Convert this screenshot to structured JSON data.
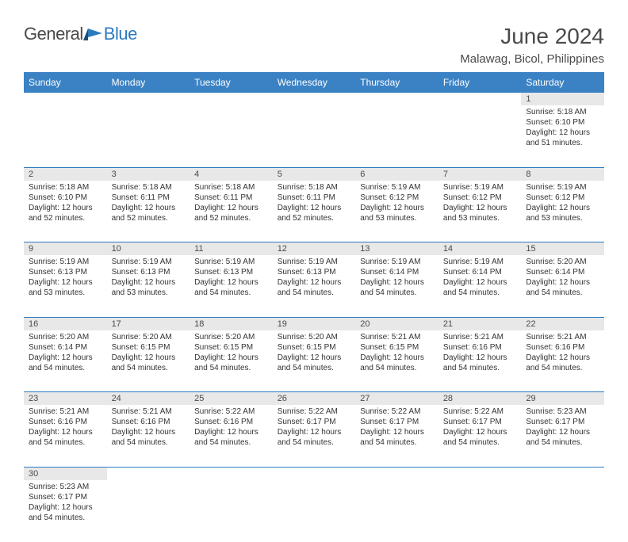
{
  "logo": {
    "text1": "General",
    "text2": "Blue"
  },
  "title": "June 2024",
  "location": "Malawag, Bicol, Philippines",
  "colors": {
    "header_bg": "#3b82c4",
    "header_text": "#ffffff",
    "daynum_bg": "#e8e8e8",
    "border": "#2b7bbf",
    "body_text": "#333333",
    "title_text": "#4a4a4a",
    "logo_blue": "#2b7bbf"
  },
  "weekdays": [
    "Sunday",
    "Monday",
    "Tuesday",
    "Wednesday",
    "Thursday",
    "Friday",
    "Saturday"
  ],
  "weeks": [
    [
      null,
      null,
      null,
      null,
      null,
      null,
      {
        "n": "1",
        "sr": "5:18 AM",
        "ss": "6:10 PM",
        "dl": "12 hours and 51 minutes."
      }
    ],
    [
      {
        "n": "2",
        "sr": "5:18 AM",
        "ss": "6:10 PM",
        "dl": "12 hours and 52 minutes."
      },
      {
        "n": "3",
        "sr": "5:18 AM",
        "ss": "6:11 PM",
        "dl": "12 hours and 52 minutes."
      },
      {
        "n": "4",
        "sr": "5:18 AM",
        "ss": "6:11 PM",
        "dl": "12 hours and 52 minutes."
      },
      {
        "n": "5",
        "sr": "5:18 AM",
        "ss": "6:11 PM",
        "dl": "12 hours and 52 minutes."
      },
      {
        "n": "6",
        "sr": "5:19 AM",
        "ss": "6:12 PM",
        "dl": "12 hours and 53 minutes."
      },
      {
        "n": "7",
        "sr": "5:19 AM",
        "ss": "6:12 PM",
        "dl": "12 hours and 53 minutes."
      },
      {
        "n": "8",
        "sr": "5:19 AM",
        "ss": "6:12 PM",
        "dl": "12 hours and 53 minutes."
      }
    ],
    [
      {
        "n": "9",
        "sr": "5:19 AM",
        "ss": "6:13 PM",
        "dl": "12 hours and 53 minutes."
      },
      {
        "n": "10",
        "sr": "5:19 AM",
        "ss": "6:13 PM",
        "dl": "12 hours and 53 minutes."
      },
      {
        "n": "11",
        "sr": "5:19 AM",
        "ss": "6:13 PM",
        "dl": "12 hours and 54 minutes."
      },
      {
        "n": "12",
        "sr": "5:19 AM",
        "ss": "6:13 PM",
        "dl": "12 hours and 54 minutes."
      },
      {
        "n": "13",
        "sr": "5:19 AM",
        "ss": "6:14 PM",
        "dl": "12 hours and 54 minutes."
      },
      {
        "n": "14",
        "sr": "5:19 AM",
        "ss": "6:14 PM",
        "dl": "12 hours and 54 minutes."
      },
      {
        "n": "15",
        "sr": "5:20 AM",
        "ss": "6:14 PM",
        "dl": "12 hours and 54 minutes."
      }
    ],
    [
      {
        "n": "16",
        "sr": "5:20 AM",
        "ss": "6:14 PM",
        "dl": "12 hours and 54 minutes."
      },
      {
        "n": "17",
        "sr": "5:20 AM",
        "ss": "6:15 PM",
        "dl": "12 hours and 54 minutes."
      },
      {
        "n": "18",
        "sr": "5:20 AM",
        "ss": "6:15 PM",
        "dl": "12 hours and 54 minutes."
      },
      {
        "n": "19",
        "sr": "5:20 AM",
        "ss": "6:15 PM",
        "dl": "12 hours and 54 minutes."
      },
      {
        "n": "20",
        "sr": "5:21 AM",
        "ss": "6:15 PM",
        "dl": "12 hours and 54 minutes."
      },
      {
        "n": "21",
        "sr": "5:21 AM",
        "ss": "6:16 PM",
        "dl": "12 hours and 54 minutes."
      },
      {
        "n": "22",
        "sr": "5:21 AM",
        "ss": "6:16 PM",
        "dl": "12 hours and 54 minutes."
      }
    ],
    [
      {
        "n": "23",
        "sr": "5:21 AM",
        "ss": "6:16 PM",
        "dl": "12 hours and 54 minutes."
      },
      {
        "n": "24",
        "sr": "5:21 AM",
        "ss": "6:16 PM",
        "dl": "12 hours and 54 minutes."
      },
      {
        "n": "25",
        "sr": "5:22 AM",
        "ss": "6:16 PM",
        "dl": "12 hours and 54 minutes."
      },
      {
        "n": "26",
        "sr": "5:22 AM",
        "ss": "6:17 PM",
        "dl": "12 hours and 54 minutes."
      },
      {
        "n": "27",
        "sr": "5:22 AM",
        "ss": "6:17 PM",
        "dl": "12 hours and 54 minutes."
      },
      {
        "n": "28",
        "sr": "5:22 AM",
        "ss": "6:17 PM",
        "dl": "12 hours and 54 minutes."
      },
      {
        "n": "29",
        "sr": "5:23 AM",
        "ss": "6:17 PM",
        "dl": "12 hours and 54 minutes."
      }
    ],
    [
      {
        "n": "30",
        "sr": "5:23 AM",
        "ss": "6:17 PM",
        "dl": "12 hours and 54 minutes."
      },
      null,
      null,
      null,
      null,
      null,
      null
    ]
  ],
  "labels": {
    "sunrise": "Sunrise:",
    "sunset": "Sunset:",
    "daylight": "Daylight:"
  }
}
